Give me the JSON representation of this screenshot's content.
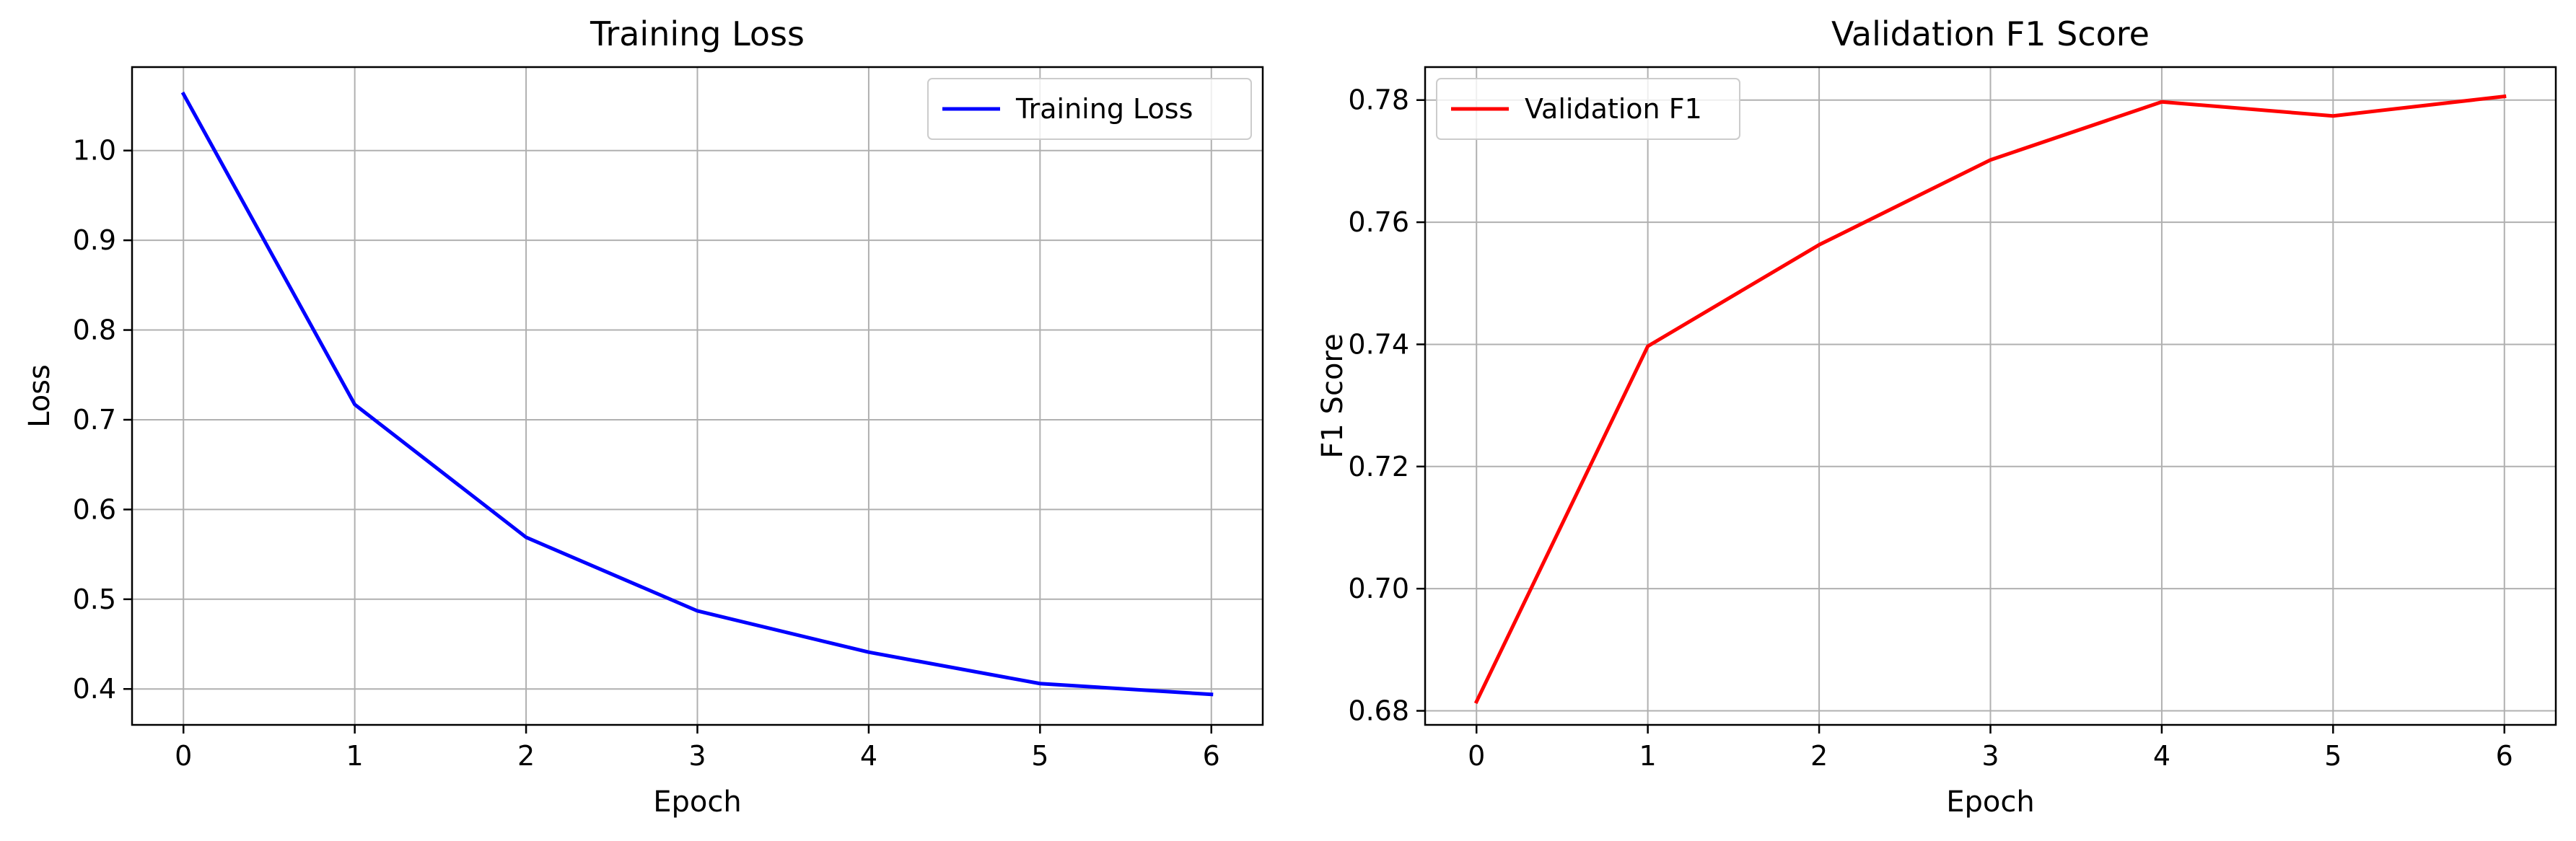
{
  "chart_data": [
    {
      "type": "line",
      "title": "Training Loss",
      "xlabel": "Epoch",
      "ylabel": "Loss",
      "x": [
        0,
        1,
        2,
        3,
        4,
        5,
        6
      ],
      "xticks": [
        "0",
        "1",
        "2",
        "3",
        "4",
        "5",
        "6"
      ],
      "yticks": [
        "0.4",
        "0.5",
        "0.6",
        "0.7",
        "0.8",
        "0.9",
        "1.0"
      ],
      "ytick_values": [
        0.4,
        0.5,
        0.6,
        0.7,
        0.8,
        0.9,
        1.0
      ],
      "xlim": [
        -0.3,
        6.3
      ],
      "ylim": [
        0.36,
        1.093
      ],
      "grid": true,
      "legend_position": "upper right",
      "series": [
        {
          "name": "Training Loss",
          "color": "#0000ff",
          "values": [
            1.063,
            0.717,
            0.569,
            0.487,
            0.441,
            0.406,
            0.394
          ]
        }
      ]
    },
    {
      "type": "line",
      "title": "Validation F1 Score",
      "xlabel": "Epoch",
      "ylabel": "F1 Score",
      "x": [
        0,
        1,
        2,
        3,
        4,
        5,
        6
      ],
      "xticks": [
        "0",
        "1",
        "2",
        "3",
        "4",
        "5",
        "6"
      ],
      "yticks": [
        "0.68",
        "0.70",
        "0.72",
        "0.74",
        "0.76",
        "0.78"
      ],
      "ytick_values": [
        0.68,
        0.7,
        0.72,
        0.74,
        0.76,
        0.78
      ],
      "xlim": [
        -0.3,
        6.3
      ],
      "ylim": [
        0.6777,
        0.7854
      ],
      "grid": true,
      "legend_position": "upper left",
      "series": [
        {
          "name": "Validation F1",
          "color": "#ff0000",
          "values": [
            0.6815,
            0.7397,
            0.7563,
            0.7702,
            0.7797,
            0.7774,
            0.7806
          ]
        }
      ]
    }
  ]
}
